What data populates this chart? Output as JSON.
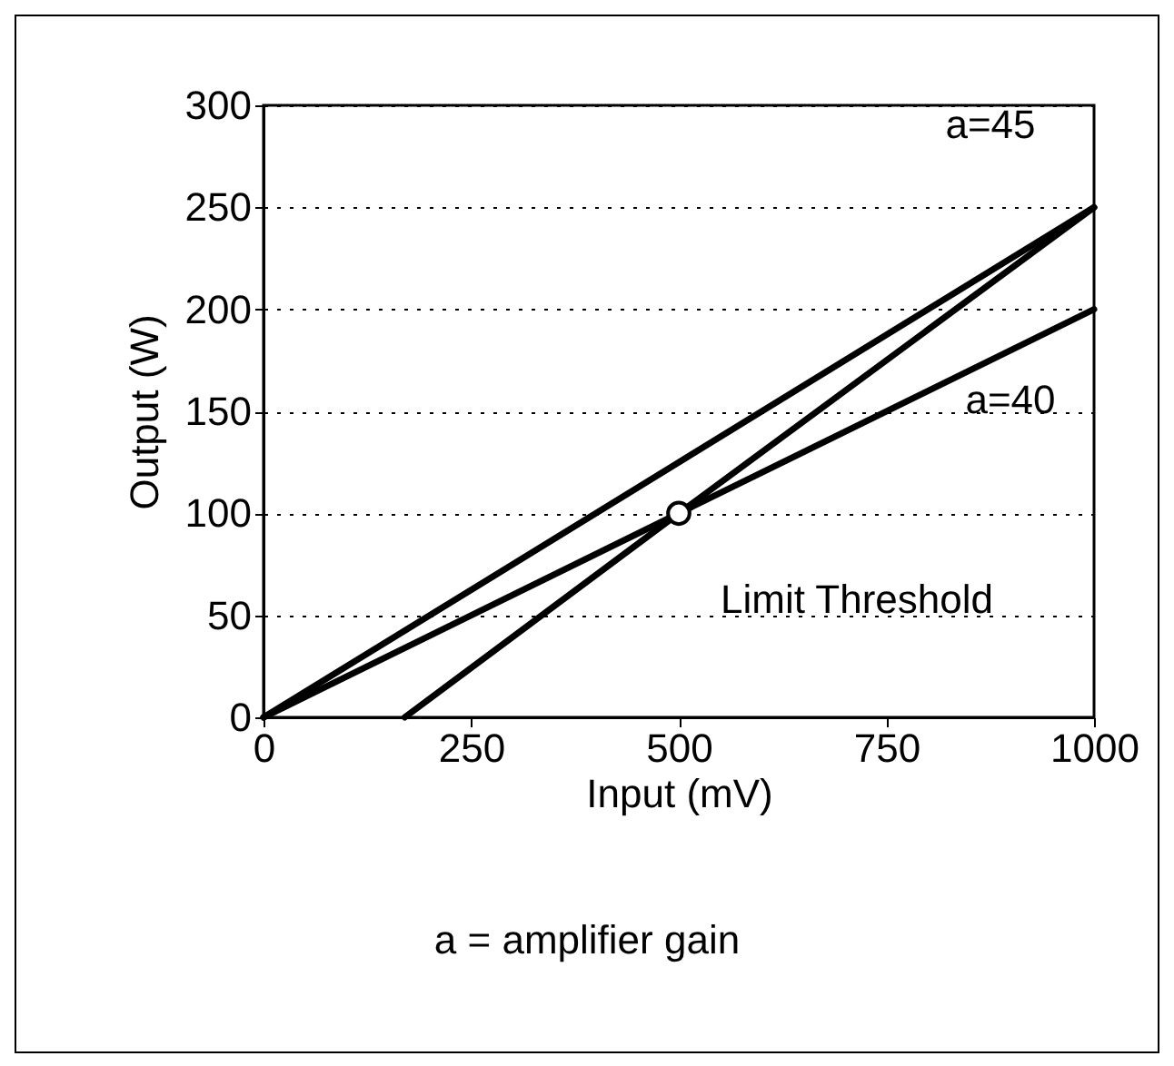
{
  "chart_data": {
    "type": "line",
    "xlabel": "Input (mV)",
    "ylabel": "Output (W)",
    "xlim": [
      0,
      1000
    ],
    "ylim": [
      0,
      300
    ],
    "xticks": [
      0,
      250,
      500,
      750,
      {
        "value": 1000,
        "label": "1000"
      }
    ],
    "yticks": [
      0,
      50,
      100,
      150,
      200,
      250,
      300
    ],
    "grid": "y",
    "line_style": "solid",
    "series": [
      {
        "name": "a=45",
        "color": "#000000",
        "x": [
          0,
          1000
        ],
        "values": [
          0,
          250
        ]
      },
      {
        "name": "a=40",
        "color": "#000000",
        "x": [
          0,
          1000
        ],
        "values": [
          0,
          200
        ]
      },
      {
        "color": "#000000",
        "x": [
          170,
          500,
          1000
        ],
        "values": [
          0,
          100,
          250
        ]
      },
      {
        "type": "scatter",
        "marker": "circle",
        "color": "#000000",
        "x": [
          500
        ],
        "values": [
          100
        ]
      }
    ],
    "annotations": [
      {
        "text": "Limit Threshold",
        "x": 500,
        "y": 100
      },
      "a = amplifier gain"
    ]
  }
}
